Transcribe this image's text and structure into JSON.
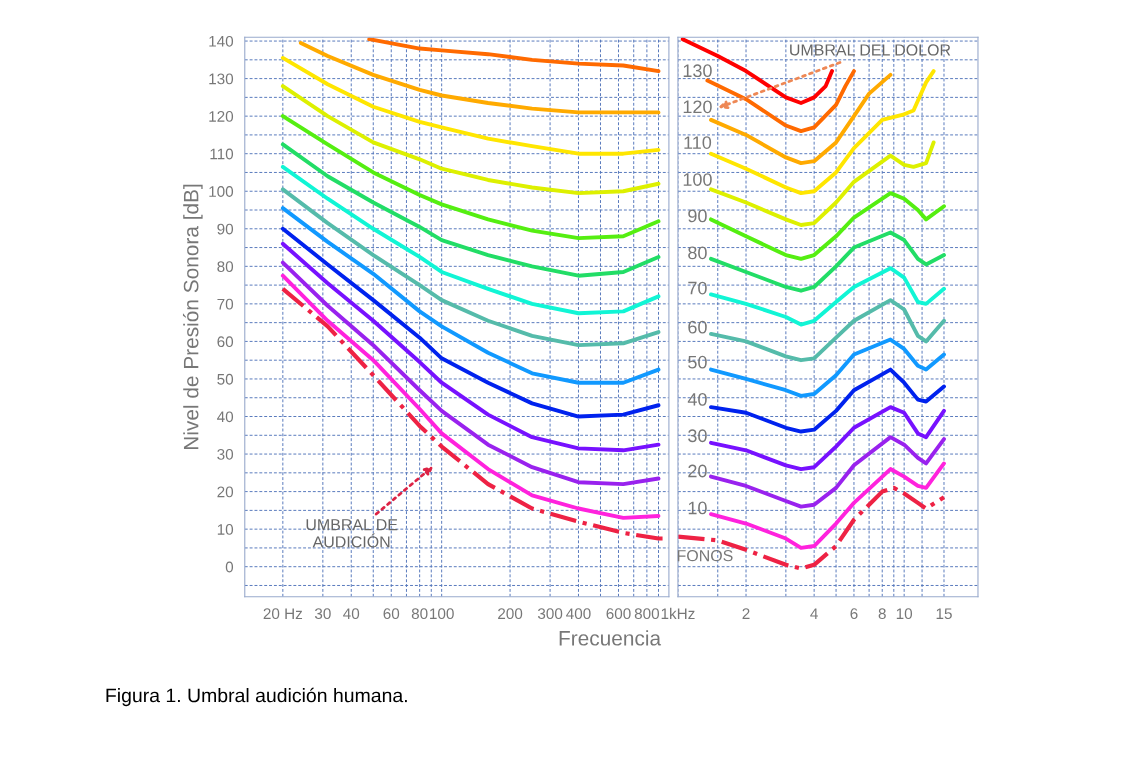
{
  "chart_data": [
    {
      "type": "line",
      "xlabel": "Frecuencia",
      "ylabel": "Nivel de Presión Sonora [dB]",
      "log": "x",
      "grid": true,
      "xlim": [
        13.6,
        1000
      ],
      "ylim": [
        -8,
        141
      ],
      "xticks": [
        {
          "value": 20,
          "label": "20 Hz"
        },
        30,
        40,
        {
          "value": 50,
          "label": null
        },
        60,
        {
          "value": 70,
          "label": null
        },
        80,
        {
          "value": 90,
          "label": null
        },
        100,
        200,
        300,
        400,
        {
          "value": 500,
          "label": null
        },
        600,
        {
          "value": 700,
          "label": null
        },
        800,
        {
          "value": 900,
          "label": null
        }
      ],
      "yticks": [
        {
          "value": -5,
          "label": null
        },
        0,
        {
          "value": 5,
          "label": null
        },
        10,
        {
          "value": 15,
          "label": null
        },
        20,
        {
          "value": 25,
          "label": null
        },
        30,
        {
          "value": 35,
          "label": null
        },
        40,
        {
          "value": 45,
          "label": null
        },
        50,
        {
          "value": 55,
          "label": null
        },
        60,
        {
          "value": 65,
          "label": null
        },
        70,
        {
          "value": 75,
          "label": null
        },
        80,
        {
          "value": 85,
          "label": null
        },
        90,
        {
          "value": 95,
          "label": null
        },
        100,
        {
          "value": 105,
          "label": null
        },
        110,
        {
          "value": 115,
          "label": null
        },
        120,
        {
          "value": 125,
          "label": null
        },
        130,
        {
          "value": 135,
          "label": null
        },
        140
      ],
      "series": [
        {
          "color": "#ff6a00",
          "x": [
            48,
            80,
            100,
            160,
            250,
            400,
            630,
            900
          ],
          "values": [
            140.5,
            138,
            137.5,
            136.5,
            135,
            134,
            133.5,
            132
          ]
        },
        {
          "color": "#ffaa00",
          "x": [
            24,
            31.5,
            50,
            80,
            100,
            160,
            250,
            400,
            630,
            900
          ],
          "values": [
            139.5,
            136,
            131,
            127,
            125.5,
            123.5,
            122,
            121,
            121,
            121
          ]
        },
        {
          "color": "#ffe600",
          "x": [
            20,
            31.5,
            50,
            80,
            100,
            160,
            250,
            400,
            630,
            900
          ],
          "values": [
            135.5,
            128.5,
            122.5,
            118.5,
            117,
            114,
            112,
            110,
            110,
            111
          ]
        },
        {
          "color": "#ddf000",
          "x": [
            20,
            31.5,
            50,
            80,
            100,
            160,
            250,
            400,
            630,
            900
          ],
          "values": [
            128,
            120,
            113,
            108.5,
            106,
            103,
            101,
            99.5,
            100,
            102
          ]
        },
        {
          "color": "#55ee11",
          "x": [
            20,
            31.5,
            50,
            80,
            100,
            160,
            250,
            400,
            630,
            900
          ],
          "values": [
            120,
            112.5,
            105,
            99,
            96.5,
            92.5,
            89.5,
            87.5,
            88,
            92
          ]
        },
        {
          "color": "#22dd66",
          "x": [
            20,
            31.5,
            50,
            80,
            100,
            160,
            250,
            400,
            630,
            900
          ],
          "values": [
            112.5,
            104,
            97,
            90.5,
            87,
            83,
            80,
            77.5,
            78.5,
            82.5
          ]
        },
        {
          "color": "#11f5d5",
          "x": [
            20,
            31.5,
            50,
            80,
            100,
            160,
            250,
            400,
            630,
            900
          ],
          "values": [
            106.5,
            98,
            90,
            82.5,
            78.5,
            74,
            70,
            67.5,
            68,
            72
          ]
        },
        {
          "color": "#55bbaa",
          "x": [
            20,
            31.5,
            50,
            80,
            100,
            160,
            250,
            400,
            630,
            900
          ],
          "values": [
            100.5,
            91.5,
            83,
            75,
            71,
            65.5,
            61.5,
            59,
            59.5,
            62.5
          ]
        },
        {
          "color": "#1199ff",
          "x": [
            20,
            31.5,
            50,
            80,
            100,
            160,
            250,
            400,
            630,
            900
          ],
          "values": [
            95.5,
            86.5,
            78,
            68,
            64,
            57,
            51.5,
            49,
            49,
            52.5
          ]
        },
        {
          "color": "#0022ee",
          "x": [
            20,
            31.5,
            50,
            80,
            100,
            160,
            250,
            400,
            630,
            900
          ],
          "values": [
            90,
            80.5,
            71,
            61,
            55.5,
            49,
            43.5,
            40,
            40.5,
            43
          ]
        },
        {
          "color": "#7711ff",
          "x": [
            20,
            31.5,
            50,
            80,
            100,
            160,
            250,
            400,
            630,
            900
          ],
          "values": [
            86,
            75.5,
            65.5,
            54.5,
            49,
            40.5,
            34.5,
            31.5,
            31,
            32.5
          ]
        },
        {
          "color": "#9922ee",
          "x": [
            20,
            31.5,
            50,
            80,
            100,
            160,
            250,
            400,
            630,
            900
          ],
          "values": [
            81,
            69.5,
            59,
            47,
            41.5,
            32.5,
            26.5,
            22.5,
            22,
            23.5
          ]
        },
        {
          "color": "#ff22dd",
          "x": [
            20,
            31.5,
            50,
            80,
            100,
            160,
            250,
            400,
            630,
            900
          ],
          "values": [
            77.5,
            65.5,
            55,
            42,
            35.5,
            26,
            19,
            15.5,
            13,
            13.5
          ]
        },
        {
          "color": "#ee2244",
          "line_style": "dashdot",
          "x": [
            20,
            31.5,
            50,
            80,
            100,
            160,
            250,
            400,
            630,
            900,
            1000
          ],
          "values": [
            74,
            64,
            51,
            37.5,
            32,
            22,
            15.5,
            12,
            9,
            7.5,
            7.5
          ]
        }
      ],
      "annotations": [
        "UMBRAL DE\nAUDICIÓN",
        "Figura 1. Umbral audición humana."
      ]
    },
    {
      "type": "line",
      "log": "x",
      "grid": true,
      "tick_labels": "x",
      "xlim": [
        1,
        21.2
      ],
      "ylim": [
        -8,
        141
      ],
      "xticks": [
        {
          "value": 1,
          "label": "1kHz"
        },
        {
          "value": 1.5,
          "label": null
        },
        2,
        {
          "value": 3,
          "label": null
        },
        4,
        {
          "value": 5,
          "label": null
        },
        6,
        {
          "value": 7,
          "label": null
        },
        8,
        {
          "value": 9,
          "label": null
        },
        10,
        {
          "value": 12,
          "label": null
        },
        15
      ],
      "yticks": [
        {
          "value": -5,
          "label": null
        },
        {
          "value": 0,
          "label": null
        },
        {
          "value": 5,
          "label": null
        },
        {
          "value": 10,
          "label": null
        },
        {
          "value": 15,
          "label": null
        },
        {
          "value": 20,
          "label": null
        },
        {
          "value": 25,
          "label": null
        },
        {
          "value": 30,
          "label": null
        },
        {
          "value": 35,
          "label": null
        },
        {
          "value": 40,
          "label": null
        },
        {
          "value": 45,
          "label": null
        },
        {
          "value": 50,
          "label": null
        },
        {
          "value": 55,
          "label": null
        },
        {
          "value": 60,
          "label": null
        },
        {
          "value": 65,
          "label": null
        },
        {
          "value": 70,
          "label": null
        },
        {
          "value": 75,
          "label": null
        },
        {
          "value": 80,
          "label": null
        },
        {
          "value": 85,
          "label": null
        },
        {
          "value": 90,
          "label": null
        },
        {
          "value": 95,
          "label": null
        },
        {
          "value": 100,
          "label": null
        },
        {
          "value": 105,
          "label": null
        },
        {
          "value": 110,
          "label": null
        },
        {
          "value": 115,
          "label": null
        },
        {
          "value": 120,
          "label": null
        },
        {
          "value": 125,
          "label": null
        },
        {
          "value": 130,
          "label": null
        },
        {
          "value": 135,
          "label": null
        },
        {
          "value": 140,
          "label": null
        }
      ],
      "series": [
        {
          "color": "#ff0000",
          "x": [
            1.05,
            1.5,
            2,
            3,
            3.5,
            4,
            4.5,
            4.8
          ],
          "values": [
            140.5,
            136,
            132,
            125,
            123.5,
            125,
            128,
            132
          ]
        },
        {
          "color": "#ff6a00",
          "x": [
            1.35,
            2,
            3,
            3.5,
            4,
            5,
            5.5,
            6
          ],
          "values": [
            129.5,
            124.5,
            117.5,
            116,
            117,
            123,
            128,
            132
          ]
        },
        {
          "color": "#ffaa00",
          "x": [
            1.4,
            2,
            3,
            3.5,
            4,
            5,
            6,
            7,
            8.7
          ],
          "values": [
            119,
            115,
            109,
            107.5,
            108,
            113,
            120,
            126,
            131
          ]
        },
        {
          "color": "#ffe600",
          "x": [
            1.4,
            2,
            3,
            3.5,
            4,
            5,
            6,
            8,
            10,
            11,
            12.5,
            13.5
          ],
          "values": [
            110,
            106,
            101,
            99.5,
            100,
            105,
            111.5,
            119,
            120.5,
            121.5,
            129,
            132
          ]
        },
        {
          "color": "#ddf000",
          "x": [
            1.4,
            2,
            3,
            3.5,
            4,
            5,
            6,
            8.7,
            10,
            11,
            12.5,
            13.5
          ],
          "values": [
            100.5,
            97,
            92.5,
            91,
            91.5,
            97,
            102.5,
            109.5,
            107,
            106.5,
            107.5,
            113
          ]
        },
        {
          "color": "#55ee11",
          "x": [
            1.4,
            2,
            3,
            3.5,
            4,
            5,
            6,
            8.7,
            10,
            11.5,
            12.5,
            15
          ],
          "values": [
            92.5,
            88,
            83,
            82,
            83,
            88,
            93,
            99.5,
            98,
            95,
            92.5,
            96
          ]
        },
        {
          "color": "#22dd66",
          "x": [
            1.4,
            2,
            3,
            3.5,
            4,
            5,
            6,
            8.7,
            10,
            11.5,
            12.5,
            15
          ],
          "values": [
            82,
            78.5,
            74.5,
            73.5,
            74.5,
            80,
            85,
            89,
            87,
            82,
            80.5,
            83
          ]
        },
        {
          "color": "#11f5d5",
          "x": [
            1.4,
            2,
            3,
            3.5,
            4,
            5,
            6,
            8.7,
            10,
            11.5,
            12.5,
            15
          ],
          "values": [
            72.5,
            70,
            66.5,
            64.5,
            65.5,
            70.5,
            74.5,
            79.5,
            77,
            70.5,
            70,
            74
          ]
        },
        {
          "color": "#55bbaa",
          "x": [
            1.4,
            2,
            3,
            3.5,
            4,
            5,
            6,
            8.7,
            10,
            11.5,
            12.5,
            15
          ],
          "values": [
            62,
            60,
            56,
            55,
            55.5,
            61,
            65.5,
            71,
            68.5,
            61.5,
            60,
            65.5
          ]
        },
        {
          "color": "#1199ff",
          "x": [
            1.4,
            2,
            3,
            3.5,
            4,
            5,
            6,
            8.7,
            10,
            11.5,
            12.5,
            15
          ],
          "values": [
            52.5,
            50,
            47,
            45.5,
            46,
            51,
            56.5,
            60.5,
            58,
            53.5,
            52.5,
            56.5
          ]
        },
        {
          "color": "#0022ee",
          "x": [
            1.4,
            2,
            3,
            3.5,
            4,
            5,
            6,
            8.7,
            10,
            11.5,
            12.5,
            15
          ],
          "values": [
            42.5,
            41,
            37,
            36,
            36.5,
            41.5,
            47,
            52.5,
            49,
            44.5,
            44,
            48
          ]
        },
        {
          "color": "#7711ff",
          "x": [
            1.4,
            2,
            3,
            3.5,
            4,
            5,
            6,
            8.7,
            10,
            11.5,
            12.5,
            15
          ],
          "values": [
            33,
            31,
            27,
            26,
            26.5,
            32,
            37,
            42.5,
            41,
            35.5,
            34.5,
            41.5
          ]
        },
        {
          "color": "#9922ee",
          "x": [
            1.4,
            2,
            3,
            3.5,
            4,
            5,
            6,
            8.7,
            10,
            11.5,
            12.5,
            15
          ],
          "values": [
            24,
            21.5,
            17.5,
            16,
            16.5,
            21,
            27,
            34.5,
            32.5,
            29,
            27.5,
            34
          ]
        },
        {
          "color": "#ff22dd",
          "x": [
            1.4,
            2,
            3,
            3.5,
            4,
            5,
            6,
            8.7,
            10,
            11.5,
            12.5,
            15
          ],
          "values": [
            14,
            11.5,
            7.5,
            5,
            5.5,
            11.5,
            17,
            26,
            24,
            21.5,
            21,
            27.5
          ]
        },
        {
          "color": "#ee2244",
          "line_style": "dashdot",
          "x": [
            1,
            1.5,
            2,
            3,
            3.5,
            4,
            5,
            6,
            8,
            9,
            10,
            11.5,
            12.5,
            15
          ],
          "values": [
            8,
            7,
            4.5,
            0.5,
            -0.5,
            0.5,
            5.5,
            12.5,
            20,
            21,
            19.5,
            17,
            15.5,
            18.5
          ]
        }
      ],
      "annotations": [
        "UMBRAL DEL DOLOR",
        "130",
        "120",
        "110",
        "100",
        "90",
        "80",
        "70",
        "60",
        "50",
        "40",
        "30",
        "20",
        "10",
        "FONOS"
      ]
    }
  ]
}
